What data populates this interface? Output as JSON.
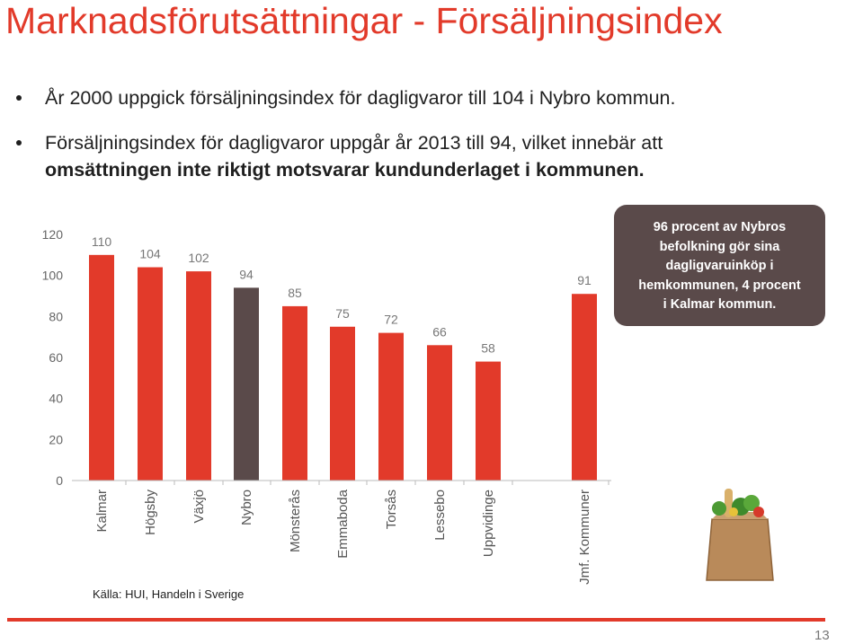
{
  "slide": {
    "title": "Marknadsförutsättningar - Försäljningsindex",
    "bullets": [
      {
        "text": "År 2000 uppgick försäljningsindex för dagligvaror till 104 i Nybro kommun."
      },
      {
        "text_line1": "Försäljningsindex för dagligvaror uppgår år 2013 till 94, vilket innebär att",
        "text_line2": "omsättningen inte riktigt motsvarar kundunderlaget i kommunen."
      }
    ],
    "callout_lines": [
      "96 procent av Nybros",
      "befolkning gör sina",
      "dagligvaruinköp i",
      "hemkommunen, 4 procent",
      "i Kalmar kommun."
    ],
    "source": "Källa: HUI, Handeln i Sverige",
    "page_number": "13"
  },
  "colors": {
    "accent": "#e23a2a",
    "highlight": "#5a4a4a",
    "callout_bg": "#5a4a4a"
  },
  "chart_data": {
    "type": "bar",
    "categories": [
      "Kalmar",
      "Högsby",
      "Växjö",
      "Nybro",
      "Mönsterås",
      "Emmaboda",
      "Torsås",
      "Lessebo",
      "Uppvidinge",
      "Jmf. Kommuner"
    ],
    "values": [
      110,
      104,
      102,
      94,
      85,
      75,
      72,
      66,
      58,
      91
    ],
    "highlight_category": "Nybro",
    "ylim": [
      0,
      120
    ],
    "yticks": [
      0,
      20,
      40,
      60,
      80,
      100,
      120
    ],
    "title": "",
    "xlabel": "",
    "ylabel": ""
  }
}
